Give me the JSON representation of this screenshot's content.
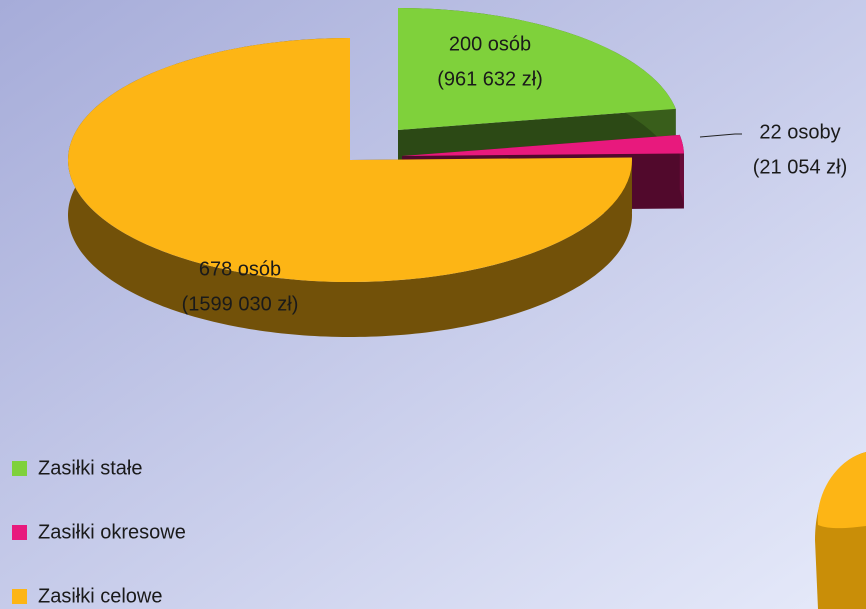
{
  "chart_data": {
    "type": "pie3d",
    "categories": [
      "Zasiłki stałe",
      "Zasiłki okresowe",
      "Zasiłki celowe"
    ],
    "values": [
      200,
      22,
      678
    ],
    "value_labels": [
      "200 osób",
      "22 osoby",
      "678 osób"
    ],
    "amount_labels": [
      "(961 632 zł)",
      "(21 054  zł)",
      "(1599 030 zł)"
    ],
    "colors": [
      "#7fd13b",
      "#e8197d",
      "#fdb515"
    ],
    "legend": "bottom-left"
  }
}
